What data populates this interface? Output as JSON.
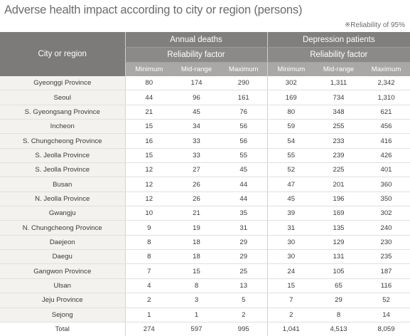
{
  "title": "Adverse health impact according to city or region (persons)",
  "note": "※Reliability of 95%",
  "headers": {
    "city": "City or region",
    "annual_deaths": "Annual deaths",
    "depression": "Depression patients",
    "reliability": "Reliability factor",
    "minimum": "Minimum",
    "midrange": "Mid-range",
    "maximum": "Maximum"
  },
  "rows": [
    {
      "city": "Gyeonggi Province",
      "values": [
        "80",
        "174",
        "290",
        "302",
        "1,311",
        "2,342"
      ]
    },
    {
      "city": "Seoul",
      "values": [
        "44",
        "96",
        "161",
        "169",
        "734",
        "1,310"
      ]
    },
    {
      "city": "S. Gyeongsang Province",
      "values": [
        "21",
        "45",
        "76",
        "80",
        "348",
        "621"
      ]
    },
    {
      "city": "Incheon",
      "values": [
        "15",
        "34",
        "56",
        "59",
        "255",
        "456"
      ]
    },
    {
      "city": "S. Chungcheong Province",
      "values": [
        "16",
        "33",
        "56",
        "54",
        "233",
        "416"
      ]
    },
    {
      "city": "S. Jeolla Province",
      "values": [
        "15",
        "33",
        "55",
        "55",
        "239",
        "426"
      ]
    },
    {
      "city": "S. Jeolla Province",
      "values": [
        "12",
        "27",
        "45",
        "52",
        "225",
        "401"
      ]
    },
    {
      "city": "Busan",
      "values": [
        "12",
        "26",
        "44",
        "47",
        "201",
        "360"
      ]
    },
    {
      "city": "N. Jeolla Province",
      "values": [
        "12",
        "26",
        "44",
        "45",
        "196",
        "350"
      ]
    },
    {
      "city": "Gwangju",
      "values": [
        "10",
        "21",
        "35",
        "39",
        "169",
        "302"
      ]
    },
    {
      "city": "N. Chungcheong Province",
      "values": [
        "9",
        "19",
        "31",
        "31",
        "135",
        "240"
      ]
    },
    {
      "city": "Daejeon",
      "values": [
        "8",
        "18",
        "29",
        "30",
        "129",
        "230"
      ]
    },
    {
      "city": "Daegu",
      "values": [
        "8",
        "18",
        "29",
        "30",
        "131",
        "235"
      ]
    },
    {
      "city": "Gangwon Province",
      "values": [
        "7",
        "15",
        "25",
        "24",
        "105",
        "187"
      ]
    },
    {
      "city": "Ulsan",
      "values": [
        "4",
        "8",
        "13",
        "15",
        "65",
        "116"
      ]
    },
    {
      "city": "Jeju Province",
      "values": [
        "2",
        "3",
        "5",
        "7",
        "29",
        "52"
      ]
    },
    {
      "city": "Sejong",
      "values": [
        "1",
        "1",
        "2",
        "2",
        "8",
        "14"
      ]
    }
  ],
  "total": {
    "city": "Total",
    "values": [
      "274",
      "597",
      "995",
      "1,041",
      "4,513",
      "8,059"
    ]
  }
}
